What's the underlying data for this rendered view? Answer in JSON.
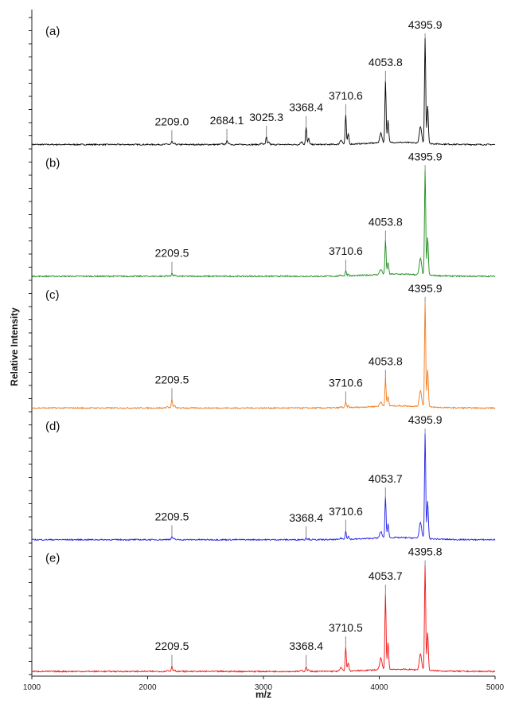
{
  "chart_data": {
    "type": "line",
    "xlabel": "m/z",
    "ylabel": "Relative Intensity",
    "xlim": [
      1000,
      5000
    ],
    "x_ticks": [
      1000,
      2000,
      3000,
      4000,
      5000
    ],
    "x_tick_labels": [
      "1000",
      "2000",
      "3000",
      "4000",
      "5000"
    ],
    "grid": false,
    "panels": [
      {
        "label": "(a)",
        "color": "#000000",
        "peaks": [
          {
            "mz": 2209.0,
            "label": "2209.0",
            "height": 0.03
          },
          {
            "mz": 2684.1,
            "label": "2684.1",
            "height": 0.04
          },
          {
            "mz": 3025.3,
            "label": "3025.3",
            "height": 0.07
          },
          {
            "mz": 3368.4,
            "label": "3368.4",
            "height": 0.16
          },
          {
            "mz": 3710.6,
            "label": "3710.6",
            "height": 0.27
          },
          {
            "mz": 4053.8,
            "label": "4053.8",
            "height": 0.58
          },
          {
            "mz": 4395.9,
            "label": "4395.9",
            "height": 1.0
          }
        ]
      },
      {
        "label": "(b)",
        "color": "#1a8a1a",
        "peaks": [
          {
            "mz": 2209.5,
            "label": "2209.5",
            "height": 0.03
          },
          {
            "mz": 3710.6,
            "label": "3710.6",
            "height": 0.05
          },
          {
            "mz": 4053.8,
            "label": "4053.8",
            "height": 0.32
          },
          {
            "mz": 4395.9,
            "label": "4395.9",
            "height": 1.0
          }
        ]
      },
      {
        "label": "(c)",
        "color": "#f07a1e",
        "peaks": [
          {
            "mz": 2209.5,
            "label": "2209.5",
            "height": 0.08
          },
          {
            "mz": 3710.6,
            "label": "3710.6",
            "height": 0.05
          },
          {
            "mz": 4053.8,
            "label": "4053.8",
            "height": 0.25
          },
          {
            "mz": 4395.9,
            "label": "4395.9",
            "height": 1.0
          }
        ]
      },
      {
        "label": "(d)",
        "color": "#1e1ee6",
        "peaks": [
          {
            "mz": 2209.5,
            "label": "2209.5",
            "height": 0.03
          },
          {
            "mz": 3368.4,
            "label": "3368.4",
            "height": 0.02
          },
          {
            "mz": 3710.6,
            "label": "3710.6",
            "height": 0.08
          },
          {
            "mz": 4053.7,
            "label": "4053.7",
            "height": 0.38
          },
          {
            "mz": 4395.9,
            "label": "4395.9",
            "height": 1.0
          }
        ]
      },
      {
        "label": "(e)",
        "color": "#ee1111",
        "peaks": [
          {
            "mz": 2209.5,
            "label": "2209.5",
            "height": 0.05
          },
          {
            "mz": 3368.4,
            "label": "3368.4",
            "height": 0.05
          },
          {
            "mz": 3710.5,
            "label": "3710.5",
            "height": 0.22
          },
          {
            "mz": 4053.7,
            "label": "4053.7",
            "height": 0.7
          },
          {
            "mz": 4395.8,
            "label": "4395.8",
            "height": 1.0
          }
        ]
      }
    ]
  }
}
